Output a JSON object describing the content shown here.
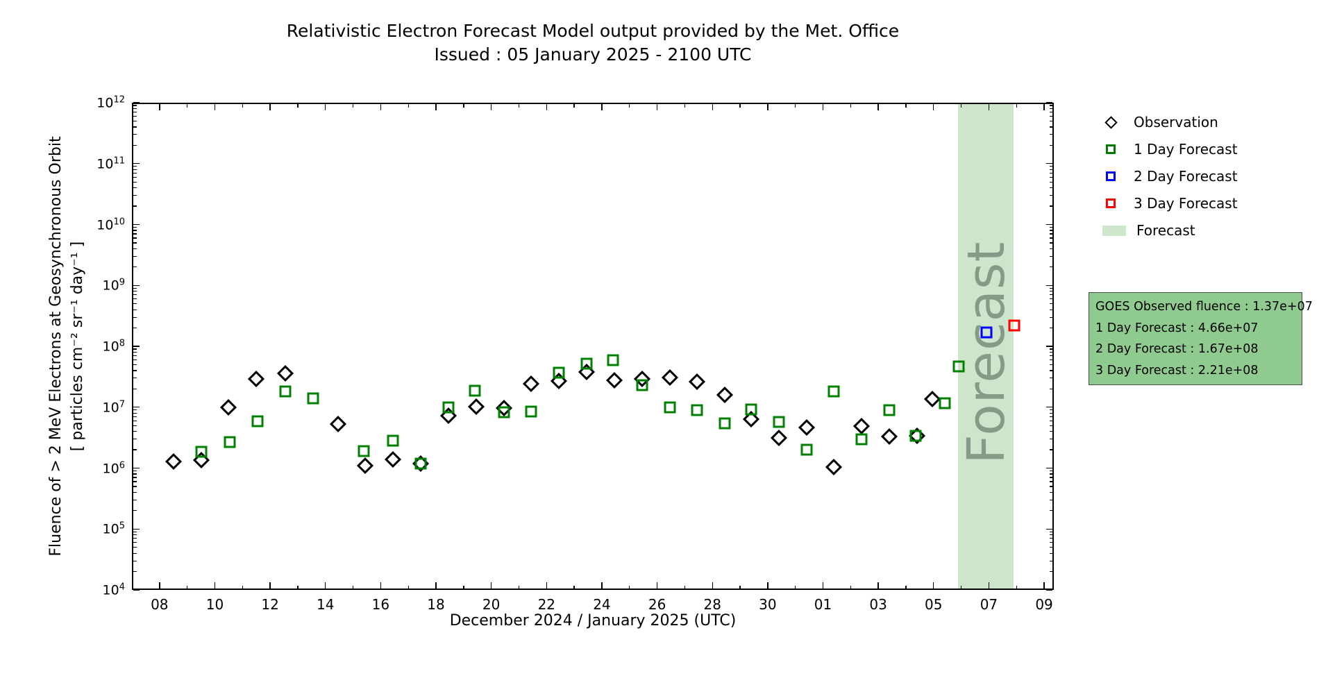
{
  "header": {
    "title": "Relativistic Electron Forecast Model output provided by the Met. Office",
    "subtitle": "Issued : 05 January 2025 - 2100 UTC"
  },
  "axes": {
    "xlabel": "December 2024 / January 2025 (UTC)",
    "ylabel_line1": "Fluence of > 2 MeV Electrons at Geosynchronous Orbit",
    "ylabel_line2": "[ particles cm⁻² sr⁻¹ day⁻¹ ]"
  },
  "legend": {
    "items": [
      {
        "label": "Observation",
        "marker": "diamond",
        "color": "#000000"
      },
      {
        "label": "1 Day Forecast",
        "marker": "square",
        "color": "#008000"
      },
      {
        "label": "2 Day Forecast",
        "marker": "square",
        "color": "#0000ff"
      },
      {
        "label": "3 Day Forecast",
        "marker": "square",
        "color": "#ff0000"
      },
      {
        "label": "Forecast",
        "marker": "patch",
        "color": "#cde5cb"
      }
    ]
  },
  "info_box": {
    "background": "#8fca8f",
    "lines": [
      "GOES Observed fluence : 1.37e+07",
      "1 Day Forecast : 4.66e+07",
      "2 Day Forecast : 1.67e+08",
      "3 Day Forecast : 2.21e+08"
    ]
  },
  "chart_data": {
    "type": "scatter",
    "title": "Relativistic Electron Forecast Model output provided by the Met. Office",
    "xlabel": "December 2024 / January 2025 (UTC)",
    "ylabel": "Fluence of > 2 MeV Electrons at Geosynchronous Orbit [ particles cm-2 sr-1 day-1 ]",
    "x_axis": {
      "unit": "day number, December 2024 continuous (Jan 01 2025 = 32)",
      "min_day": 7.0,
      "max_day": 40.35,
      "major_ticks": [
        {
          "day": 8,
          "label": "08"
        },
        {
          "day": 10,
          "label": "10"
        },
        {
          "day": 12,
          "label": "12"
        },
        {
          "day": 14,
          "label": "14"
        },
        {
          "day": 16,
          "label": "16"
        },
        {
          "day": 18,
          "label": "18"
        },
        {
          "day": 20,
          "label": "20"
        },
        {
          "day": 22,
          "label": "22"
        },
        {
          "day": 24,
          "label": "24"
        },
        {
          "day": 26,
          "label": "26"
        },
        {
          "day": 28,
          "label": "28"
        },
        {
          "day": 30,
          "label": "30"
        },
        {
          "day": 32,
          "label": "01"
        },
        {
          "day": 34,
          "label": "03"
        },
        {
          "day": 36,
          "label": "05"
        },
        {
          "day": 38,
          "label": "07"
        },
        {
          "day": 40,
          "label": "09"
        }
      ],
      "minor_tick_days": [
        9,
        11,
        13,
        15,
        17,
        19,
        21,
        23,
        25,
        27,
        29,
        31,
        33,
        35,
        37,
        39
      ]
    },
    "y_axis": {
      "scale": "log",
      "min": 10000.0,
      "max": 1000000000000.0,
      "tick_exponents": [
        4,
        5,
        6,
        7,
        8,
        9,
        10,
        11,
        12
      ]
    },
    "forecast_band": {
      "start_day": 36.88,
      "end_day": 38.89,
      "color": "#cde5cb",
      "label": "Forecast"
    },
    "series": [
      {
        "name": "Observation",
        "marker": "diamond",
        "color": "#000000",
        "points_format": "[day, fluence]",
        "points": [
          [
            8.5,
            1300000.0
          ],
          [
            9.5,
            1350000.0
          ],
          [
            10.5,
            10000000.0
          ],
          [
            11.5,
            29000000.0
          ],
          [
            12.55,
            36000000.0
          ],
          [
            14.45,
            5300000.0
          ],
          [
            15.45,
            1100000.0
          ],
          [
            16.45,
            1400000.0
          ],
          [
            17.45,
            1200000.0
          ],
          [
            18.45,
            7200000.0
          ],
          [
            19.45,
            10300000.0
          ],
          [
            20.45,
            9600000.0
          ],
          [
            21.45,
            24000000.0
          ],
          [
            22.45,
            27000000.0
          ],
          [
            23.45,
            38000000.0
          ],
          [
            24.45,
            28000000.0
          ],
          [
            25.45,
            29000000.0
          ],
          [
            26.45,
            31000000.0
          ],
          [
            27.45,
            26000000.0
          ],
          [
            28.45,
            16000000.0
          ],
          [
            29.4,
            6300000.0
          ],
          [
            30.4,
            3100000.0
          ],
          [
            31.4,
            4600000.0
          ],
          [
            32.4,
            1050000.0
          ],
          [
            33.4,
            4900000.0
          ],
          [
            34.4,
            3300000.0
          ],
          [
            35.4,
            3400000.0
          ],
          [
            35.95,
            13700000.0
          ]
        ]
      },
      {
        "name": "1 Day Forecast",
        "marker": "square",
        "color": "#008000",
        "points_format": "[day, fluence]",
        "points": [
          [
            9.5,
            1850000.0
          ],
          [
            10.55,
            2700000.0
          ],
          [
            11.55,
            5900000.0
          ],
          [
            12.55,
            18000000.0
          ],
          [
            13.55,
            14000000.0
          ],
          [
            15.4,
            1900000.0
          ],
          [
            16.45,
            2800000.0
          ],
          [
            17.45,
            1200000.0
          ],
          [
            18.45,
            10000000.0
          ],
          [
            19.4,
            18500000.0
          ],
          [
            20.45,
            8300000.0
          ],
          [
            21.45,
            8400000.0
          ],
          [
            22.45,
            37000000.0
          ],
          [
            23.45,
            52000000.0
          ],
          [
            24.4,
            59000000.0
          ],
          [
            25.45,
            23000000.0
          ],
          [
            26.45,
            10000000.0
          ],
          [
            27.45,
            8900000.0
          ],
          [
            28.45,
            5500000.0
          ],
          [
            29.4,
            9200000.0
          ],
          [
            30.4,
            5700000.0
          ],
          [
            31.4,
            2000000.0
          ],
          [
            32.4,
            18000000.0
          ],
          [
            33.4,
            3000000.0
          ],
          [
            34.4,
            9000000.0
          ],
          [
            35.35,
            3400000.0
          ],
          [
            36.4,
            11500000.0
          ],
          [
            36.9,
            46600000.0
          ]
        ]
      },
      {
        "name": "2 Day Forecast",
        "marker": "square",
        "color": "#0000ff",
        "points_format": "[day, fluence]",
        "points": [
          [
            37.92,
            167000000.0
          ]
        ]
      },
      {
        "name": "3 Day Forecast",
        "marker": "square",
        "color": "#ff0000",
        "points_format": "[day, fluence]",
        "points": [
          [
            38.93,
            221000000.0
          ]
        ]
      }
    ]
  }
}
